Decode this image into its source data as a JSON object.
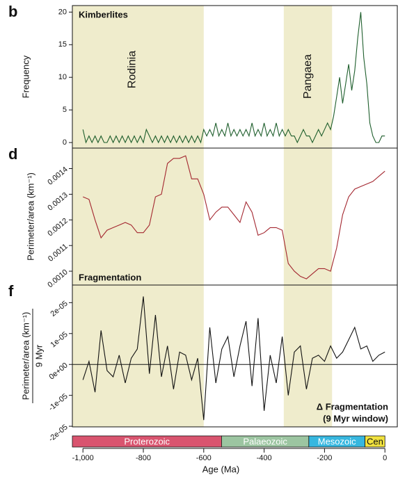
{
  "chart_data": [
    {
      "type": "line",
      "panel_label": "b",
      "title": "Kimberlites",
      "ylabel": "Frequency",
      "color": "#1e5e2c",
      "xlim": [
        -1035,
        41
      ],
      "ylim": [
        -0.85,
        21
      ],
      "yticks": [
        0,
        5,
        10,
        15,
        20
      ],
      "annotations": [
        "Rodinia",
        "Pangaea"
      ],
      "x": [
        -1000,
        -990,
        -980,
        -970,
        -960,
        -950,
        -940,
        -930,
        -920,
        -910,
        -900,
        -890,
        -880,
        -870,
        -860,
        -850,
        -840,
        -830,
        -820,
        -810,
        -800,
        -790,
        -780,
        -770,
        -760,
        -750,
        -740,
        -730,
        -720,
        -710,
        -700,
        -690,
        -680,
        -670,
        -660,
        -650,
        -640,
        -630,
        -620,
        -610,
        -600,
        -590,
        -580,
        -570,
        -560,
        -550,
        -540,
        -530,
        -520,
        -510,
        -500,
        -490,
        -480,
        -470,
        -460,
        -450,
        -440,
        -430,
        -420,
        -410,
        -400,
        -390,
        -380,
        -370,
        -360,
        -350,
        -340,
        -330,
        -320,
        -310,
        -300,
        -290,
        -280,
        -270,
        -260,
        -250,
        -240,
        -230,
        -220,
        -210,
        -200,
        -190,
        -180,
        -170,
        -160,
        -150,
        -140,
        -130,
        -120,
        -110,
        -100,
        -90,
        -80,
        -70,
        -60,
        -50,
        -40,
        -30,
        -20,
        -10,
        0
      ],
      "values": [
        2,
        0,
        1,
        0,
        1,
        0,
        1,
        0,
        0,
        1,
        0,
        1,
        0,
        1,
        0,
        1,
        0,
        1,
        0,
        1,
        0,
        2,
        1,
        0,
        1,
        0,
        1,
        0,
        1,
        0,
        1,
        0,
        1,
        0,
        1,
        0,
        1,
        0,
        1,
        0,
        2,
        1,
        2,
        1,
        3,
        1,
        2,
        1,
        3,
        1,
        2,
        1,
        2,
        1,
        2,
        1,
        3,
        1,
        2,
        1,
        3,
        1,
        2,
        1,
        3,
        1,
        2,
        1,
        2,
        1,
        1,
        0,
        1,
        2,
        1,
        1,
        0,
        1,
        2,
        1,
        2,
        3,
        2,
        4,
        7,
        10,
        6,
        9,
        12,
        8,
        11,
        16,
        20,
        13,
        9,
        3,
        1,
        0,
        0,
        1,
        1
      ]
    },
    {
      "type": "line",
      "panel_label": "d",
      "title": "Fragmentation",
      "ylabel": "Perimeter/area (km⁻¹)",
      "color": "#a3262f",
      "xlim": [
        -1035,
        41
      ],
      "ylim": [
        0.000946,
        0.00148
      ],
      "yticks": [
        {
          "value": 0.001,
          "label": "0.0010"
        },
        0.0011,
        0.0012,
        0.0013,
        0.0014
      ],
      "x": [
        -1000,
        -980,
        -960,
        -940,
        -920,
        -900,
        -880,
        -860,
        -840,
        -820,
        -800,
        -780,
        -760,
        -740,
        -720,
        -700,
        -680,
        -660,
        -640,
        -620,
        -600,
        -580,
        -560,
        -540,
        -520,
        -500,
        -480,
        -460,
        -440,
        -420,
        -400,
        -380,
        -360,
        -340,
        -320,
        -300,
        -280,
        -260,
        -240,
        -220,
        -200,
        -180,
        -160,
        -140,
        -120,
        -100,
        -80,
        -60,
        -40,
        -20,
        0
      ],
      "values": [
        0.00129,
        0.00128,
        0.0012,
        0.00113,
        0.00116,
        0.00117,
        0.00118,
        0.00119,
        0.00118,
        0.00115,
        0.00115,
        0.00118,
        0.00129,
        0.0013,
        0.00142,
        0.00144,
        0.00144,
        0.00145,
        0.00136,
        0.00136,
        0.0013,
        0.0012,
        0.00123,
        0.00125,
        0.00125,
        0.00122,
        0.00119,
        0.00127,
        0.00123,
        0.00114,
        0.00115,
        0.00117,
        0.00117,
        0.00116,
        0.00103,
        0.001,
        0.00098,
        0.00097,
        0.00099,
        0.00101,
        0.00101,
        0.001,
        0.00109,
        0.00122,
        0.00129,
        0.00132,
        0.00133,
        0.00134,
        0.00135,
        0.00137,
        0.00139
      ]
    },
    {
      "type": "line",
      "panel_label": "f",
      "title": [
        "Δ Fragmentation",
        "(9 Myr window)"
      ],
      "ylabel": [
        "Perimeter/area (km⁻¹)",
        "9 Myr"
      ],
      "color": "#111111",
      "xlabel": "Age (Ma)",
      "xlim": [
        -1035,
        41
      ],
      "xticks": [
        {
          "value": -1000,
          "label": "-1,000"
        },
        -800,
        -600,
        -400,
        -200,
        0
      ],
      "ylim": [
        -2.02e-05,
        2.57e-05
      ],
      "yticks": [
        {
          "value": -2e-05,
          "label": "-2e-05"
        },
        {
          "value": -1e-05,
          "label": "-1e-05"
        },
        {
          "value": 0,
          "label": "0e+00"
        },
        {
          "value": 1e-05,
          "label": "1e-05"
        },
        {
          "value": 2e-05,
          "label": "2e-05"
        }
      ],
      "zero_line": 0,
      "x": [
        -1000,
        -980,
        -960,
        -940,
        -920,
        -900,
        -880,
        -860,
        -840,
        -820,
        -800,
        -780,
        -760,
        -740,
        -720,
        -700,
        -680,
        -660,
        -640,
        -620,
        -600,
        -580,
        -560,
        -540,
        -520,
        -500,
        -480,
        -460,
        -440,
        -420,
        -400,
        -380,
        -360,
        -340,
        -320,
        -300,
        -280,
        -260,
        -240,
        -220,
        -200,
        -180,
        -160,
        -140,
        -120,
        -100,
        -80,
        -60,
        -40,
        -20,
        0
      ],
      "values": [
        -5e-06,
        1e-06,
        -9e-06,
        1.1e-05,
        -2e-06,
        -4e-06,
        3e-06,
        -6e-06,
        2e-06,
        5e-06,
        2.2e-05,
        -3e-06,
        1.6e-05,
        -4e-06,
        6e-06,
        -8e-06,
        4e-06,
        3e-06,
        -5e-06,
        2e-06,
        -1.8e-05,
        1.2e-05,
        -6e-06,
        5e-06,
        9e-06,
        -4e-06,
        6e-06,
        1.4e-05,
        -7e-06,
        1.5e-05,
        -1.5e-05,
        3e-06,
        -6e-06,
        9e-06,
        -1e-05,
        4e-06,
        6e-06,
        -8e-06,
        2e-06,
        3e-06,
        1e-06,
        6e-06,
        2e-06,
        4e-06,
        8e-06,
        1.2e-05,
        5e-06,
        6e-06,
        1e-06,
        3e-06,
        4e-06
      ]
    }
  ],
  "shading": [
    {
      "xmin": -1035,
      "xmax": -600,
      "color": "#efeccc"
    },
    {
      "xmin": -335,
      "xmax": -175,
      "color": "#efeccc"
    }
  ],
  "timescale": [
    {
      "label": "Proterozoic",
      "start": -1035,
      "end": -541,
      "color": "#d9546f"
    },
    {
      "label": "Palaeozoic",
      "start": -541,
      "end": -252,
      "color": "#9cc5a1"
    },
    {
      "label": "Mesozoic",
      "start": -252,
      "end": -66,
      "color": "#36b7df"
    },
    {
      "label": "Cen",
      "start": -66,
      "end": 0,
      "color": "#f1e23e"
    }
  ]
}
